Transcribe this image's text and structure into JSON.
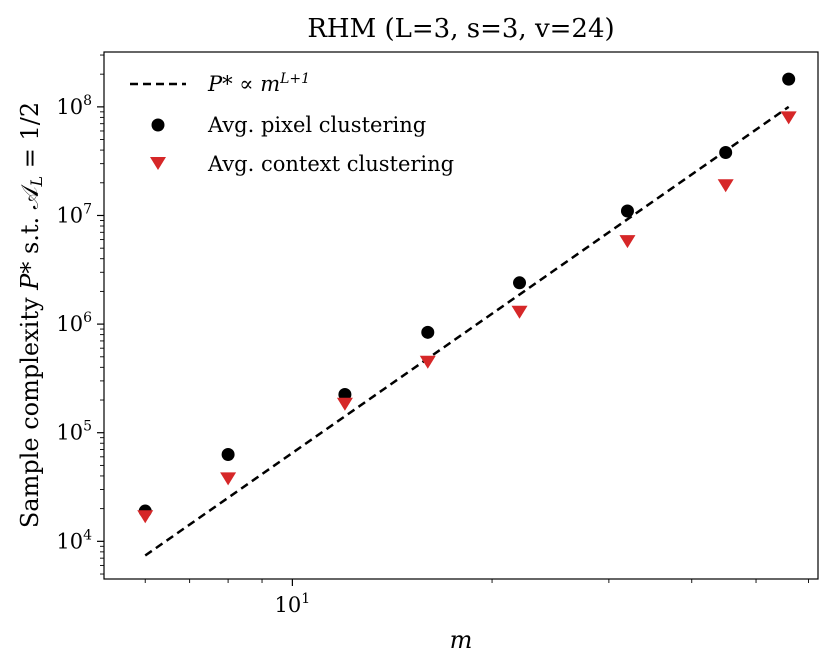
{
  "chart_data": {
    "type": "scatter",
    "title": "RHM (L=3, s=3, v=24)",
    "xlabel": "m",
    "ylabel_prefix": "Sample complexity ",
    "ylabel_var": "P*",
    "ylabel_suffix": " s.t. 𝒜",
    "ylabel_sub": "L",
    "ylabel_end": " = 1/2",
    "xscale": "log",
    "yscale": "log",
    "xlim": [
      5.2,
      62
    ],
    "ylim": [
      4500,
      320000000
    ],
    "xticks": [
      {
        "value": 10,
        "base": "10",
        "exp": "1"
      }
    ],
    "yticks": [
      {
        "value": 10000,
        "base": "10",
        "exp": "4"
      },
      {
        "value": 100000,
        "base": "10",
        "exp": "5"
      },
      {
        "value": 1000000,
        "base": "10",
        "exp": "6"
      },
      {
        "value": 10000000,
        "base": "10",
        "exp": "7"
      },
      {
        "value": 100000000,
        "base": "10",
        "exp": "8"
      }
    ],
    "legend_position": "top-left",
    "series": [
      {
        "name": "fit",
        "label_main": "P* ∝ m",
        "label_sup": "L+1",
        "kind": "dashed-line",
        "color": "#000000",
        "x": [
          6,
          56
        ],
        "y": [
          7400,
          100000000
        ]
      },
      {
        "name": "Avg. pixel clustering",
        "kind": "circle",
        "color": "#000000",
        "x": [
          6,
          8,
          12,
          16,
          22,
          32,
          45,
          56
        ],
        "y": [
          19000,
          63000,
          225000,
          840000,
          2400000,
          11000000,
          38000000,
          180000000
        ]
      },
      {
        "name": "Avg. context clustering",
        "kind": "triangle-down",
        "color": "#d62728",
        "x": [
          6,
          8,
          12,
          16,
          22,
          32,
          45,
          56
        ],
        "y": [
          17000,
          38000,
          185000,
          450000,
          1300000,
          5800000,
          19000000,
          80000000
        ]
      }
    ]
  }
}
